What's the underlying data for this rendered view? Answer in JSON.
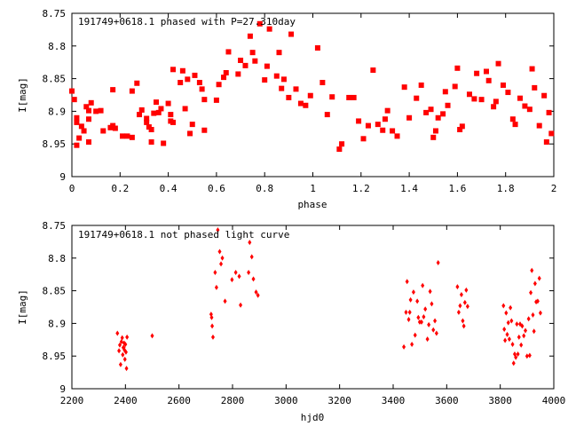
{
  "chart_data": [
    {
      "type": "scatter",
      "title": "191749+0618.1 phased with P=27.310day",
      "xlabel": "phase",
      "ylabel": "I[mag]",
      "xlim": [
        0,
        2
      ],
      "ylim": [
        8.75,
        9
      ],
      "y_inverted": true,
      "xticks": [
        "0",
        "0.2",
        "0.4",
        "0.6",
        "0.8",
        "1",
        "1.2",
        "1.4",
        "1.6",
        "1.8",
        "2"
      ],
      "yticks": [
        "8.75",
        "8.8",
        "8.85",
        "8.9",
        "8.95",
        "9"
      ],
      "marker": "filled-square",
      "color": "#ff0000",
      "grid": false,
      "legend": "none",
      "points": [
        [
          0.0,
          8.869
        ],
        [
          0.01,
          8.882
        ],
        [
          0.02,
          8.91
        ],
        [
          0.02,
          8.917
        ],
        [
          0.02,
          8.952
        ],
        [
          0.03,
          8.941
        ],
        [
          0.04,
          8.923
        ],
        [
          0.05,
          8.93
        ],
        [
          0.06,
          8.893
        ],
        [
          0.07,
          8.899
        ],
        [
          0.07,
          8.912
        ],
        [
          0.07,
          8.947
        ],
        [
          0.08,
          8.887
        ],
        [
          0.1,
          8.9
        ],
        [
          0.12,
          8.899
        ],
        [
          0.13,
          8.93
        ],
        [
          0.16,
          8.925
        ],
        [
          0.17,
          8.922
        ],
        [
          0.18,
          8.926
        ],
        [
          0.17,
          8.867
        ],
        [
          0.21,
          8.938
        ],
        [
          0.23,
          8.938
        ],
        [
          0.25,
          8.94
        ],
        [
          0.25,
          8.869
        ],
        [
          0.27,
          8.857
        ],
        [
          0.28,
          8.905
        ],
        [
          0.29,
          8.898
        ],
        [
          0.31,
          8.917
        ],
        [
          0.31,
          8.911
        ],
        [
          0.32,
          8.924
        ],
        [
          0.33,
          8.928
        ],
        [
          0.33,
          8.947
        ],
        [
          0.34,
          8.903
        ],
        [
          0.35,
          8.886
        ],
        [
          0.36,
          8.902
        ],
        [
          0.37,
          8.896
        ],
        [
          0.38,
          8.949
        ],
        [
          0.4,
          8.888
        ],
        [
          0.41,
          8.905
        ],
        [
          0.41,
          8.915
        ],
        [
          0.42,
          8.917
        ],
        [
          0.42,
          8.836
        ],
        [
          0.45,
          8.856
        ],
        [
          0.46,
          8.838
        ],
        [
          0.47,
          8.896
        ],
        [
          0.48,
          8.851
        ],
        [
          0.49,
          8.934
        ],
        [
          0.5,
          8.92
        ],
        [
          0.51,
          8.845
        ],
        [
          0.53,
          8.856
        ],
        [
          0.54,
          8.866
        ],
        [
          0.55,
          8.929
        ],
        [
          0.55,
          8.882
        ],
        [
          0.6,
          8.883
        ],
        [
          0.61,
          8.859
        ],
        [
          0.63,
          8.848
        ],
        [
          0.64,
          8.841
        ],
        [
          0.65,
          8.809
        ],
        [
          0.69,
          8.843
        ],
        [
          0.7,
          8.822
        ],
        [
          0.72,
          8.83
        ],
        [
          0.74,
          8.785
        ],
        [
          0.75,
          8.81
        ],
        [
          0.76,
          8.823
        ],
        [
          0.78,
          8.766
        ],
        [
          0.8,
          8.852
        ],
        [
          0.81,
          8.831
        ],
        [
          0.82,
          8.774
        ],
        [
          0.85,
          8.846
        ],
        [
          0.86,
          8.81
        ],
        [
          0.87,
          8.865
        ],
        [
          0.88,
          8.851
        ],
        [
          0.9,
          8.879
        ],
        [
          0.91,
          8.782
        ],
        [
          0.93,
          8.866
        ],
        [
          0.95,
          8.888
        ],
        [
          0.97,
          8.891
        ],
        [
          0.99,
          8.876
        ],
        [
          1.02,
          8.803
        ],
        [
          1.04,
          8.856
        ],
        [
          1.06,
          8.905
        ],
        [
          1.08,
          8.878
        ],
        [
          1.11,
          8.958
        ],
        [
          1.12,
          8.95
        ],
        [
          1.15,
          8.879
        ],
        [
          1.17,
          8.879
        ],
        [
          1.19,
          8.915
        ],
        [
          1.21,
          8.942
        ],
        [
          1.23,
          8.922
        ],
        [
          1.25,
          8.837
        ],
        [
          1.27,
          8.92
        ],
        [
          1.29,
          8.929
        ],
        [
          1.3,
          8.912
        ],
        [
          1.31,
          8.899
        ],
        [
          1.33,
          8.93
        ],
        [
          1.35,
          8.938
        ],
        [
          1.38,
          8.863
        ],
        [
          1.4,
          8.91
        ],
        [
          1.43,
          8.88
        ],
        [
          1.45,
          8.86
        ],
        [
          1.47,
          8.902
        ],
        [
          1.49,
          8.897
        ],
        [
          1.5,
          8.94
        ],
        [
          1.51,
          8.93
        ],
        [
          1.52,
          8.91
        ],
        [
          1.54,
          8.904
        ],
        [
          1.55,
          8.87
        ],
        [
          1.56,
          8.891
        ],
        [
          1.59,
          8.862
        ],
        [
          1.6,
          8.834
        ],
        [
          1.61,
          8.928
        ],
        [
          1.62,
          8.923
        ],
        [
          1.65,
          8.874
        ],
        [
          1.67,
          8.881
        ],
        [
          1.68,
          8.842
        ],
        [
          1.7,
          8.882
        ],
        [
          1.72,
          8.839
        ],
        [
          1.73,
          8.853
        ],
        [
          1.75,
          8.893
        ],
        [
          1.76,
          8.885
        ],
        [
          1.77,
          8.827
        ],
        [
          1.79,
          8.86
        ],
        [
          1.81,
          8.871
        ],
        [
          1.83,
          8.912
        ],
        [
          1.84,
          8.92
        ],
        [
          1.86,
          8.88
        ],
        [
          1.88,
          8.892
        ],
        [
          1.9,
          8.897
        ],
        [
          1.91,
          8.835
        ],
        [
          1.92,
          8.864
        ],
        [
          1.94,
          8.922
        ],
        [
          1.96,
          8.876
        ],
        [
          1.97,
          8.947
        ],
        [
          1.98,
          8.902
        ],
        [
          1.99,
          8.934
        ]
      ]
    },
    {
      "type": "scatter",
      "title": "191749+0618.1 not phased light curve",
      "xlabel": "hjd0",
      "ylabel": "I[mag]",
      "xlim": [
        2200,
        4000
      ],
      "ylim": [
        8.75,
        9
      ],
      "y_inverted": true,
      "xticks": [
        "2200",
        "2400",
        "2600",
        "2800",
        "3000",
        "3200",
        "3400",
        "3600",
        "3800",
        "4000"
      ],
      "yticks": [
        "8.75",
        "8.8",
        "8.85",
        "8.9",
        "8.95",
        "9"
      ],
      "marker": "filled-diamond",
      "color": "#ff0000",
      "grid": false,
      "legend": "none",
      "points": [
        [
          2370,
          8.915
        ],
        [
          2376,
          8.942
        ],
        [
          2379,
          8.933
        ],
        [
          2382,
          8.963
        ],
        [
          2385,
          8.928
        ],
        [
          2388,
          8.922
        ],
        [
          2390,
          8.948
        ],
        [
          2392,
          8.937
        ],
        [
          2394,
          8.937
        ],
        [
          2395,
          8.93
        ],
        [
          2397,
          8.941
        ],
        [
          2398,
          8.955
        ],
        [
          2400,
          8.932
        ],
        [
          2402,
          8.944
        ],
        [
          2404,
          8.969
        ],
        [
          2406,
          8.921
        ],
        [
          2500,
          8.919
        ],
        [
          2720,
          8.886
        ],
        [
          2722,
          8.891
        ],
        [
          2724,
          8.904
        ],
        [
          2727,
          8.921
        ],
        [
          2735,
          8.822
        ],
        [
          2740,
          8.845
        ],
        [
          2745,
          8.757
        ],
        [
          2752,
          8.79
        ],
        [
          2757,
          8.809
        ],
        [
          2762,
          8.8
        ],
        [
          2772,
          8.866
        ],
        [
          2798,
          8.833
        ],
        [
          2812,
          8.822
        ],
        [
          2825,
          8.828
        ],
        [
          2830,
          8.872
        ],
        [
          2860,
          8.822
        ],
        [
          2864,
          8.776
        ],
        [
          2872,
          8.798
        ],
        [
          2878,
          8.832
        ],
        [
          2888,
          8.852
        ],
        [
          2895,
          8.857
        ],
        [
          3440,
          8.936
        ],
        [
          3448,
          8.883
        ],
        [
          3452,
          8.836
        ],
        [
          3458,
          8.894
        ],
        [
          3462,
          8.883
        ],
        [
          3465,
          8.864
        ],
        [
          3470,
          8.932
        ],
        [
          3476,
          8.852
        ],
        [
          3482,
          8.918
        ],
        [
          3490,
          8.866
        ],
        [
          3494,
          8.891
        ],
        [
          3499,
          8.898
        ],
        [
          3506,
          8.898
        ],
        [
          3510,
          8.842
        ],
        [
          3514,
          8.89
        ],
        [
          3520,
          8.878
        ],
        [
          3528,
          8.924
        ],
        [
          3533,
          8.902
        ],
        [
          3538,
          8.851
        ],
        [
          3544,
          8.87
        ],
        [
          3550,
          8.91
        ],
        [
          3556,
          8.896
        ],
        [
          3562,
          8.915
        ],
        [
          3568,
          8.807
        ],
        [
          3640,
          8.844
        ],
        [
          3645,
          8.883
        ],
        [
          3650,
          8.873
        ],
        [
          3655,
          8.856
        ],
        [
          3660,
          8.896
        ],
        [
          3664,
          8.904
        ],
        [
          3668,
          8.868
        ],
        [
          3673,
          8.849
        ],
        [
          3678,
          8.874
        ],
        [
          3812,
          8.873
        ],
        [
          3815,
          8.909
        ],
        [
          3818,
          8.926
        ],
        [
          3822,
          8.884
        ],
        [
          3826,
          8.917
        ],
        [
          3830,
          8.899
        ],
        [
          3834,
          8.924
        ],
        [
          3838,
          8.876
        ],
        [
          3842,
          8.896
        ],
        [
          3846,
          8.932
        ],
        [
          3850,
          8.961
        ],
        [
          3854,
          8.947
        ],
        [
          3858,
          8.952
        ],
        [
          3862,
          8.901
        ],
        [
          3866,
          8.947
        ],
        [
          3870,
          8.921
        ],
        [
          3874,
          8.901
        ],
        [
          3878,
          8.933
        ],
        [
          3882,
          8.904
        ],
        [
          3888,
          8.919
        ],
        [
          3894,
          8.911
        ],
        [
          3900,
          8.95
        ],
        [
          3906,
          8.893
        ],
        [
          3910,
          8.949
        ],
        [
          3914,
          8.853
        ],
        [
          3918,
          8.819
        ],
        [
          3922,
          8.887
        ],
        [
          3926,
          8.912
        ],
        [
          3930,
          8.839
        ],
        [
          3934,
          8.867
        ],
        [
          3940,
          8.866
        ],
        [
          3946,
          8.831
        ],
        [
          3950,
          8.884
        ]
      ]
    }
  ]
}
